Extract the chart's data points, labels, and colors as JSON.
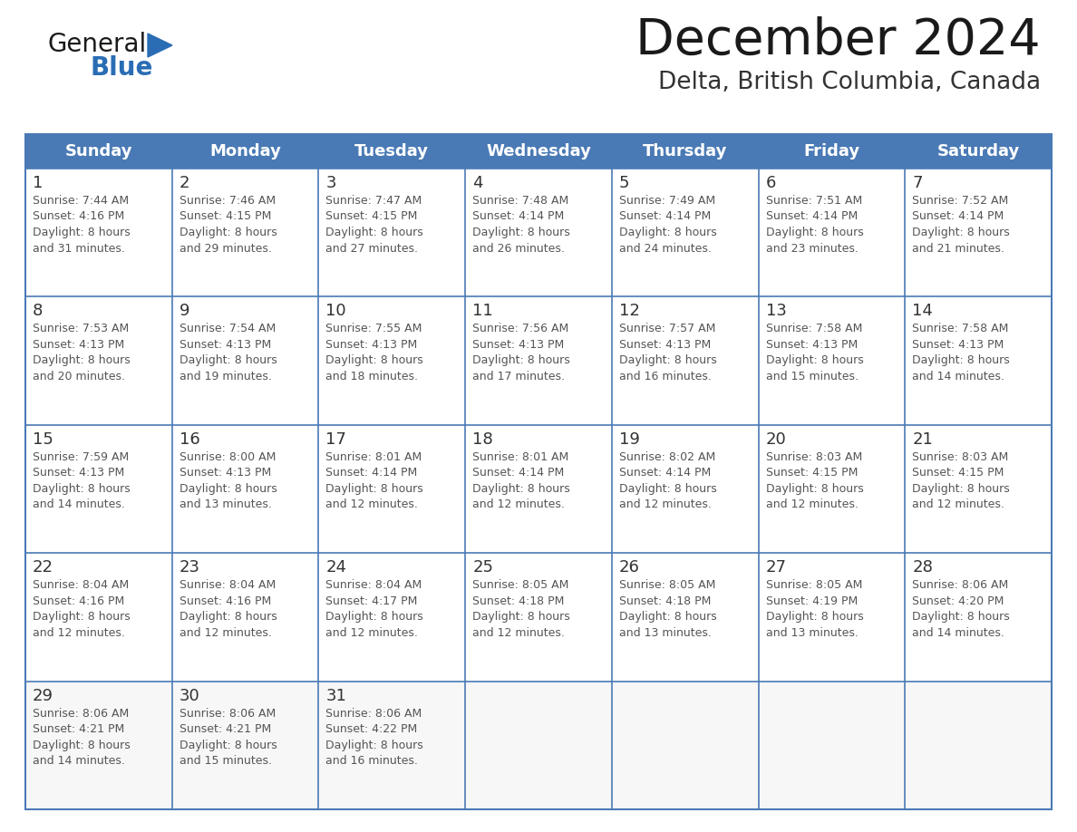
{
  "title": "December 2024",
  "subtitle": "Delta, British Columbia, Canada",
  "header_bg_color": "#4a7ab5",
  "header_text_color": "#ffffff",
  "cell_bg_color": "#ffffff",
  "cell_alt_bg_color": "#f2f2f2",
  "cell_text_color": "#555555",
  "day_number_color": "#333333",
  "grid_line_color": "#4a7ab5",
  "border_color": "#4a7ab5",
  "title_color": "#1a1a1a",
  "subtitle_color": "#333333",
  "days_of_week": [
    "Sunday",
    "Monday",
    "Tuesday",
    "Wednesday",
    "Thursday",
    "Friday",
    "Saturday"
  ],
  "calendar_data": [
    [
      {
        "day": 1,
        "sunrise": "7:44 AM",
        "sunset": "4:16 PM",
        "daylight": "8 hours and 31 minutes."
      },
      {
        "day": 2,
        "sunrise": "7:46 AM",
        "sunset": "4:15 PM",
        "daylight": "8 hours and 29 minutes."
      },
      {
        "day": 3,
        "sunrise": "7:47 AM",
        "sunset": "4:15 PM",
        "daylight": "8 hours and 27 minutes."
      },
      {
        "day": 4,
        "sunrise": "7:48 AM",
        "sunset": "4:14 PM",
        "daylight": "8 hours and 26 minutes."
      },
      {
        "day": 5,
        "sunrise": "7:49 AM",
        "sunset": "4:14 PM",
        "daylight": "8 hours and 24 minutes."
      },
      {
        "day": 6,
        "sunrise": "7:51 AM",
        "sunset": "4:14 PM",
        "daylight": "8 hours and 23 minutes."
      },
      {
        "day": 7,
        "sunrise": "7:52 AM",
        "sunset": "4:14 PM",
        "daylight": "8 hours and 21 minutes."
      }
    ],
    [
      {
        "day": 8,
        "sunrise": "7:53 AM",
        "sunset": "4:13 PM",
        "daylight": "8 hours and 20 minutes."
      },
      {
        "day": 9,
        "sunrise": "7:54 AM",
        "sunset": "4:13 PM",
        "daylight": "8 hours and 19 minutes."
      },
      {
        "day": 10,
        "sunrise": "7:55 AM",
        "sunset": "4:13 PM",
        "daylight": "8 hours and 18 minutes."
      },
      {
        "day": 11,
        "sunrise": "7:56 AM",
        "sunset": "4:13 PM",
        "daylight": "8 hours and 17 minutes."
      },
      {
        "day": 12,
        "sunrise": "7:57 AM",
        "sunset": "4:13 PM",
        "daylight": "8 hours and 16 minutes."
      },
      {
        "day": 13,
        "sunrise": "7:58 AM",
        "sunset": "4:13 PM",
        "daylight": "8 hours and 15 minutes."
      },
      {
        "day": 14,
        "sunrise": "7:58 AM",
        "sunset": "4:13 PM",
        "daylight": "8 hours and 14 minutes."
      }
    ],
    [
      {
        "day": 15,
        "sunrise": "7:59 AM",
        "sunset": "4:13 PM",
        "daylight": "8 hours and 14 minutes."
      },
      {
        "day": 16,
        "sunrise": "8:00 AM",
        "sunset": "4:13 PM",
        "daylight": "8 hours and 13 minutes."
      },
      {
        "day": 17,
        "sunrise": "8:01 AM",
        "sunset": "4:14 PM",
        "daylight": "8 hours and 12 minutes."
      },
      {
        "day": 18,
        "sunrise": "8:01 AM",
        "sunset": "4:14 PM",
        "daylight": "8 hours and 12 minutes."
      },
      {
        "day": 19,
        "sunrise": "8:02 AM",
        "sunset": "4:14 PM",
        "daylight": "8 hours and 12 minutes."
      },
      {
        "day": 20,
        "sunrise": "8:03 AM",
        "sunset": "4:15 PM",
        "daylight": "8 hours and 12 minutes."
      },
      {
        "day": 21,
        "sunrise": "8:03 AM",
        "sunset": "4:15 PM",
        "daylight": "8 hours and 12 minutes."
      }
    ],
    [
      {
        "day": 22,
        "sunrise": "8:04 AM",
        "sunset": "4:16 PM",
        "daylight": "8 hours and 12 minutes."
      },
      {
        "day": 23,
        "sunrise": "8:04 AM",
        "sunset": "4:16 PM",
        "daylight": "8 hours and 12 minutes."
      },
      {
        "day": 24,
        "sunrise": "8:04 AM",
        "sunset": "4:17 PM",
        "daylight": "8 hours and 12 minutes."
      },
      {
        "day": 25,
        "sunrise": "8:05 AM",
        "sunset": "4:18 PM",
        "daylight": "8 hours and 12 minutes."
      },
      {
        "day": 26,
        "sunrise": "8:05 AM",
        "sunset": "4:18 PM",
        "daylight": "8 hours and 13 minutes."
      },
      {
        "day": 27,
        "sunrise": "8:05 AM",
        "sunset": "4:19 PM",
        "daylight": "8 hours and 13 minutes."
      },
      {
        "day": 28,
        "sunrise": "8:06 AM",
        "sunset": "4:20 PM",
        "daylight": "8 hours and 14 minutes."
      }
    ],
    [
      {
        "day": 29,
        "sunrise": "8:06 AM",
        "sunset": "4:21 PM",
        "daylight": "8 hours and 14 minutes."
      },
      {
        "day": 30,
        "sunrise": "8:06 AM",
        "sunset": "4:21 PM",
        "daylight": "8 hours and 15 minutes."
      },
      {
        "day": 31,
        "sunrise": "8:06 AM",
        "sunset": "4:22 PM",
        "daylight": "8 hours and 16 minutes."
      },
      null,
      null,
      null,
      null
    ]
  ],
  "logo_color1": "#1a1a1a",
  "logo_color2": "#2a6db5",
  "logo_triangle_color": "#2a6db5"
}
